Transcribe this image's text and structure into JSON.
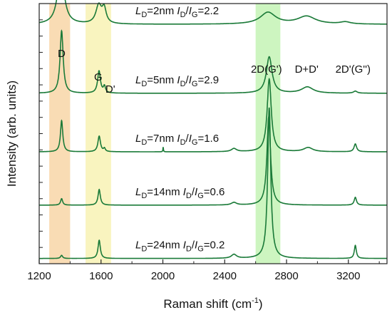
{
  "chart_data": {
    "type": "line",
    "xlabel": "Raman shift (cm",
    "xlabel_sup": "-1",
    "xlabel_close": ")",
    "ylabel": "Intensity (arb. units)",
    "xlim": [
      1200,
      3450
    ],
    "xticks": [
      1200,
      1600,
      2000,
      2400,
      2800,
      3200
    ],
    "highlight_bands": [
      {
        "x0": 1265,
        "x1": 1400,
        "color": "#f9dcb4"
      },
      {
        "x0": 1500,
        "x1": 1665,
        "color": "#f9f4bf"
      },
      {
        "x0": 2600,
        "x1": 2760,
        "color": "#cdf5c0"
      }
    ],
    "peak_labels": [
      {
        "text": "D",
        "x": 1345,
        "series": 0,
        "dy": -9
      },
      {
        "text": "G",
        "x": 1582,
        "series": 1,
        "dy": -10
      },
      {
        "text": "D'",
        "x": 1660,
        "series": 1,
        "dy": -10
      },
      {
        "text": "2D(G')",
        "x": 2670,
        "series": 1,
        "dy": -6
      },
      {
        "text": "D+D'",
        "x": 2930,
        "series": 1,
        "dy": -6
      },
      {
        "text": "2D'(G'')",
        "x": 3230,
        "series": 1,
        "dy": -6
      }
    ],
    "series": [
      {
        "ld": "2nm",
        "ratio": "2.2",
        "baseline": 0.92,
        "peaks": [
          {
            "x": 1340,
            "h": 0.2,
            "w": 26
          },
          {
            "x": 1585,
            "h": 0.07,
            "w": 22
          },
          {
            "x": 1620,
            "h": 0.055,
            "w": 16
          },
          {
            "x": 2680,
            "h": 0.045,
            "w": 60
          },
          {
            "x": 2930,
            "h": 0.03,
            "w": 70
          },
          {
            "x": 3180,
            "h": 0.008,
            "w": 40
          }
        ]
      },
      {
        "ld": "5nm",
        "ratio": "2.9",
        "baseline": 0.655,
        "peaks": [
          {
            "x": 1345,
            "h": 0.24,
            "w": 12
          },
          {
            "x": 1587,
            "h": 0.085,
            "w": 11
          },
          {
            "x": 1622,
            "h": 0.025,
            "w": 8
          },
          {
            "x": 2688,
            "h": 0.14,
            "w": 22
          },
          {
            "x": 2935,
            "h": 0.024,
            "w": 45
          },
          {
            "x": 3245,
            "h": 0.008,
            "w": 14
          }
        ]
      },
      {
        "ld": "7nm",
        "ratio": "1.6",
        "baseline": 0.43,
        "peaks": [
          {
            "x": 1345,
            "h": 0.12,
            "w": 9
          },
          {
            "x": 1588,
            "h": 0.06,
            "w": 10
          },
          {
            "x": 1622,
            "h": 0.012,
            "w": 7
          },
          {
            "x": 2002,
            "h": 0.018,
            "w": 2
          },
          {
            "x": 2460,
            "h": 0.012,
            "w": 20
          },
          {
            "x": 2688,
            "h": 0.28,
            "w": 16
          },
          {
            "x": 2940,
            "h": 0.016,
            "w": 35
          },
          {
            "x": 3245,
            "h": 0.03,
            "w": 10
          }
        ]
      },
      {
        "ld": "14nm",
        "ratio": "0.6",
        "baseline": 0.225,
        "peaks": [
          {
            "x": 1345,
            "h": 0.025,
            "w": 8
          },
          {
            "x": 1588,
            "h": 0.06,
            "w": 9
          },
          {
            "x": 2460,
            "h": 0.01,
            "w": 20
          },
          {
            "x": 2685,
            "h": 0.34,
            "w": 14
          },
          {
            "x": 3245,
            "h": 0.03,
            "w": 9
          }
        ]
      },
      {
        "ld": "24nm",
        "ratio": "0.2",
        "baseline": 0.02,
        "peaks": [
          {
            "x": 1345,
            "h": 0.012,
            "w": 8
          },
          {
            "x": 1588,
            "h": 0.07,
            "w": 9
          },
          {
            "x": 2460,
            "h": 0.015,
            "w": 20
          },
          {
            "x": 2688,
            "h": 0.58,
            "w": 12
          },
          {
            "x": 3245,
            "h": 0.05,
            "w": 8
          }
        ]
      }
    ],
    "line_color": "#1a7a38"
  }
}
